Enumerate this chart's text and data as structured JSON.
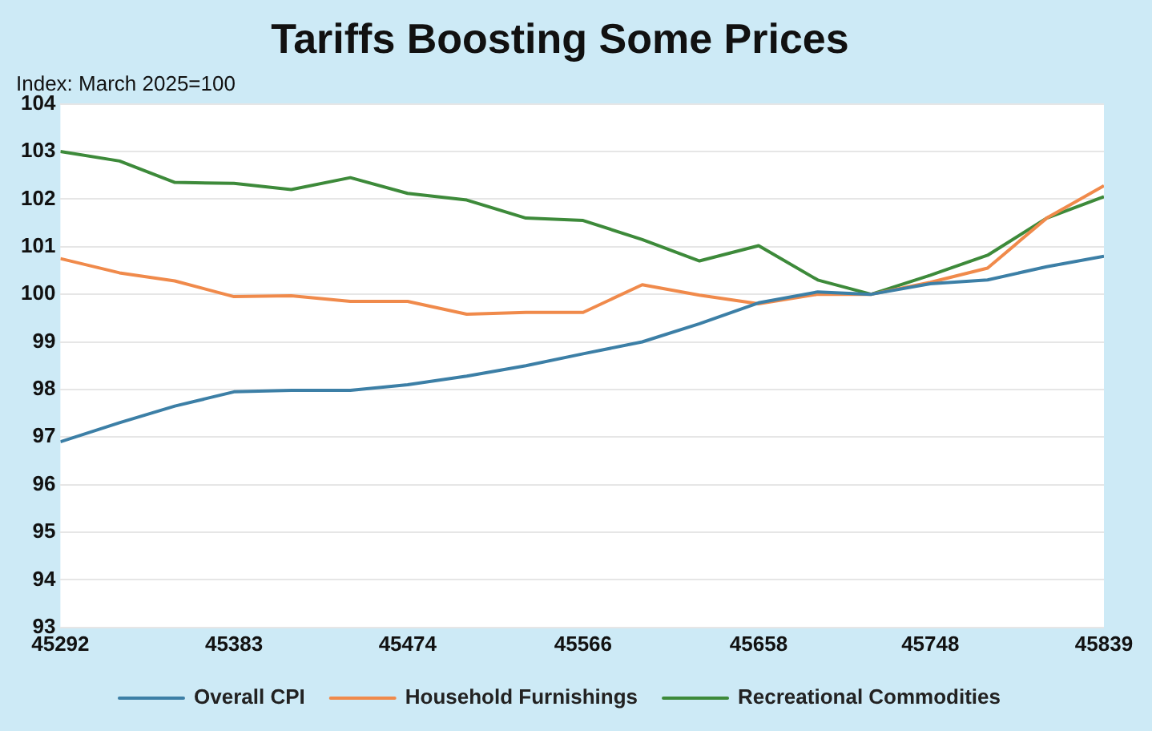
{
  "chart_data": {
    "type": "line",
    "title": "Tariffs Boosting Some Prices",
    "subtitle": "Index: March 2025=100",
    "x": [
      45292,
      45323,
      45352,
      45383,
      45413,
      45444,
      45474,
      45505,
      45536,
      45566,
      45597,
      45627,
      45658,
      45689,
      45717,
      45748,
      45778,
      45809,
      45839
    ],
    "series": [
      {
        "name": "Overall CPI",
        "color": "#3c7fa6",
        "values": [
          96.9,
          97.3,
          97.65,
          97.95,
          97.98,
          97.98,
          98.1,
          98.28,
          98.5,
          98.75,
          99.0,
          99.38,
          99.82,
          100.05,
          100.0,
          100.22,
          100.3,
          100.58,
          100.8
        ]
      },
      {
        "name": "Household Furnishings",
        "color": "#f08a4b",
        "values": [
          100.75,
          100.45,
          100.28,
          99.95,
          99.97,
          99.85,
          99.85,
          99.58,
          99.62,
          99.62,
          100.2,
          99.98,
          99.8,
          100.0,
          100.0,
          100.25,
          100.55,
          101.6,
          102.28
        ]
      },
      {
        "name": "Recreational Commodities",
        "color": "#3d8a3a",
        "values": [
          103.0,
          102.8,
          102.35,
          102.33,
          102.2,
          102.45,
          102.12,
          101.98,
          101.6,
          101.55,
          101.15,
          100.7,
          101.02,
          100.3,
          100.0,
          100.4,
          100.82,
          101.6,
          102.05
        ]
      }
    ],
    "xlim": [
      45292,
      45839
    ],
    "xticks": [
      45292,
      45383,
      45474,
      45566,
      45658,
      45748,
      45839
    ],
    "ylim": [
      93,
      104
    ],
    "yticks": [
      93,
      94,
      95,
      96,
      97,
      98,
      99,
      100,
      101,
      102,
      103,
      104
    ],
    "grid": "y",
    "legend": "bottom",
    "marker": "none",
    "line_style": "solid"
  }
}
